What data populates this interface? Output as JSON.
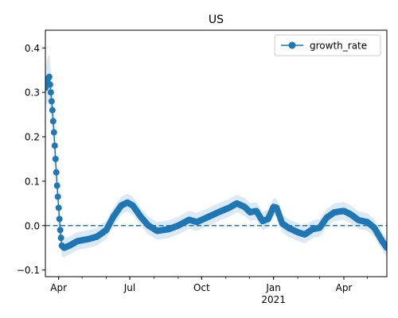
{
  "chart_data": {
    "type": "line",
    "title": "US",
    "xlabel": "",
    "ylabel": "",
    "x_range": [
      "2020-03-15",
      "2021-05-26"
    ],
    "ylim": [
      -0.115,
      0.44
    ],
    "grid": false,
    "legend": {
      "placement": "top-right",
      "entries": [
        "growth_rate"
      ]
    },
    "reference_line": {
      "y": 0.0,
      "style": "dashed"
    },
    "x_ticks": [
      {
        "date": "2020-04-01",
        "label": "Apr"
      },
      {
        "date": "2020-07-01",
        "label": "Jul"
      },
      {
        "date": "2020-10-01",
        "label": "Oct"
      },
      {
        "date": "2021-01-01",
        "label": "Jan"
      },
      {
        "date": "2021-04-01",
        "label": "Apr"
      }
    ],
    "x_year_label": {
      "date": "2021-01-01",
      "label": "2021"
    },
    "y_ticks": [
      {
        "value": 0.4,
        "label": "0.4"
      },
      {
        "value": 0.3,
        "label": "0.3"
      },
      {
        "value": 0.2,
        "label": "0.2"
      },
      {
        "value": 0.1,
        "label": "0.1"
      },
      {
        "value": 0.0,
        "label": "0.0"
      },
      {
        "value": -0.1,
        "label": "−0.1"
      }
    ],
    "series": [
      {
        "name": "growth_rate",
        "color": "#1f77b4",
        "band_color": "#dbe8f5",
        "band_halfwidth": [
          [
            "2020-03-15",
            0.05
          ],
          [
            "2020-03-22",
            0.05
          ],
          [
            "2020-03-29",
            0.03
          ],
          [
            "2020-04-10",
            0.02
          ],
          [
            "2021-05-26",
            0.02
          ]
        ],
        "anchors": [
          [
            "2020-03-15",
            0.31
          ],
          [
            "2020-03-18",
            0.33
          ],
          [
            "2020-03-20",
            0.335
          ],
          [
            "2020-03-22",
            0.3
          ],
          [
            "2020-03-24",
            0.26
          ],
          [
            "2020-03-26",
            0.21
          ],
          [
            "2020-03-28",
            0.15
          ],
          [
            "2020-03-30",
            0.09
          ],
          [
            "2020-04-01",
            0.04
          ],
          [
            "2020-04-03",
            -0.01
          ],
          [
            "2020-04-05",
            -0.045
          ],
          [
            "2020-04-08",
            -0.05
          ],
          [
            "2020-04-15",
            -0.045
          ],
          [
            "2020-04-25",
            -0.035
          ],
          [
            "2020-05-10",
            -0.03
          ],
          [
            "2020-05-20",
            -0.025
          ],
          [
            "2020-06-01",
            -0.01
          ],
          [
            "2020-06-10",
            0.02
          ],
          [
            "2020-06-20",
            0.045
          ],
          [
            "2020-06-28",
            0.052
          ],
          [
            "2020-07-05",
            0.045
          ],
          [
            "2020-07-15",
            0.02
          ],
          [
            "2020-07-25",
            0.0
          ],
          [
            "2020-08-05",
            -0.012
          ],
          [
            "2020-08-20",
            -0.008
          ],
          [
            "2020-09-01",
            0.0
          ],
          [
            "2020-09-15",
            0.013
          ],
          [
            "2020-09-25",
            0.008
          ],
          [
            "2020-10-10",
            0.02
          ],
          [
            "2020-10-25",
            0.032
          ],
          [
            "2020-11-05",
            0.04
          ],
          [
            "2020-11-15",
            0.05
          ],
          [
            "2020-11-25",
            0.042
          ],
          [
            "2020-12-02",
            0.03
          ],
          [
            "2020-12-10",
            0.033
          ],
          [
            "2020-12-18",
            0.01
          ],
          [
            "2020-12-25",
            0.015
          ],
          [
            "2021-01-01",
            0.042
          ],
          [
            "2021-01-05",
            0.04
          ],
          [
            "2021-01-12",
            0.005
          ],
          [
            "2021-01-20",
            -0.005
          ],
          [
            "2021-02-01",
            -0.015
          ],
          [
            "2021-02-10",
            -0.02
          ],
          [
            "2021-02-20",
            -0.008
          ],
          [
            "2021-03-01",
            -0.005
          ],
          [
            "2021-03-10",
            0.018
          ],
          [
            "2021-03-20",
            0.03
          ],
          [
            "2021-04-01",
            0.033
          ],
          [
            "2021-04-10",
            0.025
          ],
          [
            "2021-04-20",
            0.012
          ],
          [
            "2021-05-01",
            0.008
          ],
          [
            "2021-05-10",
            -0.005
          ],
          [
            "2021-05-20",
            -0.035
          ],
          [
            "2021-05-26",
            -0.05
          ]
        ]
      }
    ]
  }
}
